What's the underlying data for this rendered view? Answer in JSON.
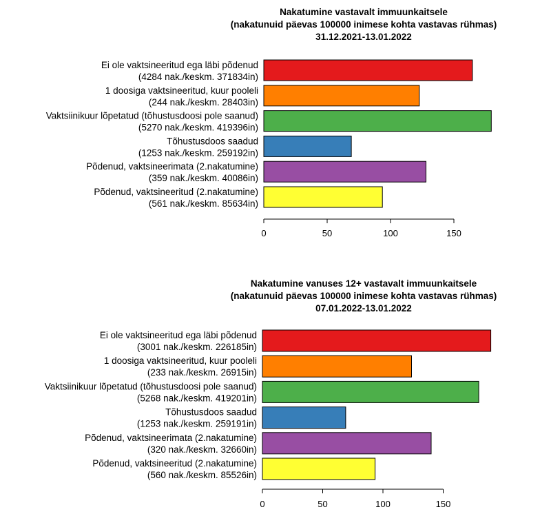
{
  "chart_data": [
    {
      "type": "bar",
      "orientation": "horizontal",
      "title": [
        "Nakatumine vastavalt immuunkaitsele",
        "(nakatunuid päevas 100000 inimese kohta vastavas rühmas)",
        "31.12.2021-13.01.2022"
      ],
      "categories": [
        [
          "Ei ole vaktsineeritud ega läbi põdenud",
          "(4284 nak./keskm. 371834in)"
        ],
        [
          "1 doosiga vaktsineeritud, kuur pooleli",
          "(244 nak./keskm. 28403in)"
        ],
        [
          "Vaktsiinikuur lõpetatud (tõhustusdoosi pole saanud)",
          "(5270 nak./keskm. 419396in)"
        ],
        [
          "Tõhustusdoos saadud",
          "(1253 nak./keskm. 259192in)"
        ],
        [
          "Põdenud, vaktsineerimata (2.nakatumine)",
          "(359 nak./keskm. 40086in)"
        ],
        [
          "Põdenud, vaktsineeritud (2.nakatumine)",
          "(561 nak./keskm. 85634in)"
        ]
      ],
      "values": [
        164.6,
        122.7,
        179.5,
        69.1,
        128.0,
        93.6
      ],
      "colors": [
        "#e41a1c",
        "#ff7f00",
        "#4daf4a",
        "#377eb8",
        "#984ea3",
        "#ffff33"
      ],
      "xticks": [
        0,
        50,
        100,
        150
      ],
      "xlim": [
        0,
        180
      ]
    },
    {
      "type": "bar",
      "orientation": "horizontal",
      "title": [
        "Nakatumine vanuses 12+ vastavalt immuunkaitsele",
        "(nakatunuid päevas 100000 inimese kohta vastavas rühmas)",
        "07.01.2022-13.01.2022"
      ],
      "categories": [
        [
          "Ei ole vaktsineeritud ega läbi põdenud",
          "(3001 nak./keskm. 226185in)"
        ],
        [
          "1 doosiga vaktsineeritud, kuur pooleli",
          "(233 nak./keskm. 26915in)"
        ],
        [
          "Vaktsiinikuur lõpetatud (tõhustusdoosi pole saanud)",
          "(5268 nak./keskm. 419201in)"
        ],
        [
          "Tõhustusdoos saadud",
          "(1253 nak./keskm. 259191in)"
        ],
        [
          "Põdenud, vaktsineerimata (2.nakatumine)",
          "(320 nak./keskm. 32660in)"
        ],
        [
          "Põdenud, vaktsineeritud (2.nakatumine)",
          "(560 nak./keskm. 85526in)"
        ]
      ],
      "values": [
        189.5,
        123.7,
        179.5,
        69.1,
        140.0,
        93.5
      ],
      "colors": [
        "#e41a1c",
        "#ff7f00",
        "#4daf4a",
        "#377eb8",
        "#984ea3",
        "#ffff33"
      ],
      "xticks": [
        0,
        50,
        100,
        150
      ],
      "xlim": [
        0,
        190
      ]
    }
  ]
}
